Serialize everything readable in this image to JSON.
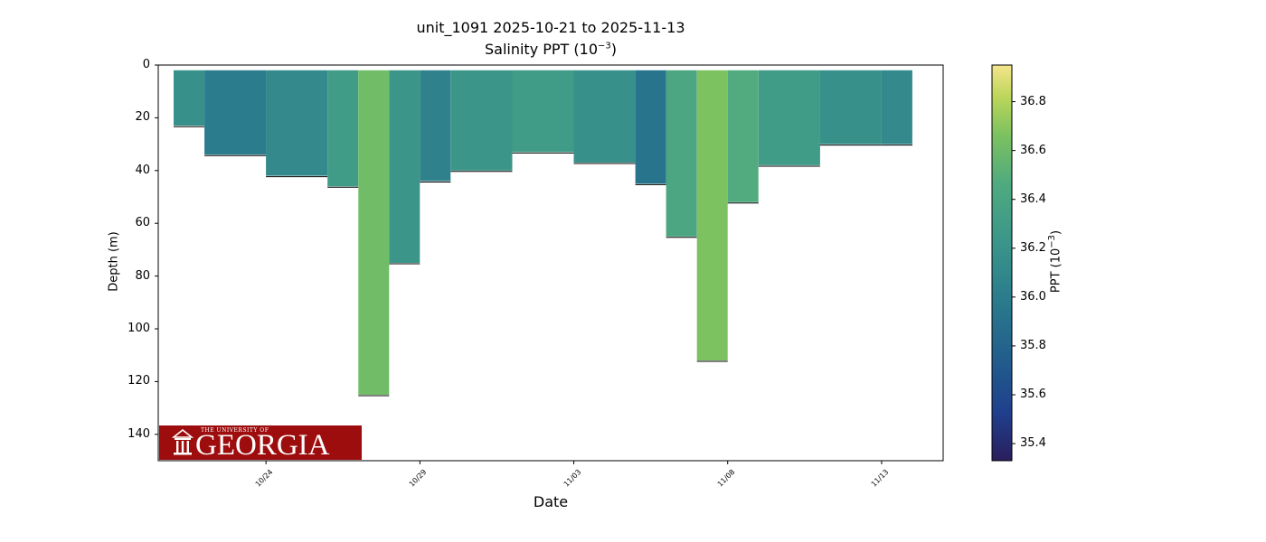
{
  "chart_data": {
    "type": "scatter",
    "title": "unit_1091 2025-10-21 to 2025-11-13",
    "subtitle_prefix": "Salinity PPT (10",
    "subtitle_exp": "−3",
    "subtitle_suffix": ")",
    "xlabel": "Date",
    "ylabel": "Depth (m)",
    "colorbar_label_prefix": "PPT (10",
    "colorbar_label_exp": "−3",
    "colorbar_label_suffix": ")",
    "x_axis": "date",
    "xlim": [
      "2025-10-20T12:00",
      "2025-11-15T00:00"
    ],
    "xticks": [
      "10/24",
      "10/29",
      "11/03",
      "11/08",
      "11/13"
    ],
    "xtick_dates": [
      "2025-10-24",
      "2025-10-29",
      "2025-11-03",
      "2025-11-08",
      "2025-11-13"
    ],
    "ylim": [
      150,
      0
    ],
    "yticks": [
      "0",
      "20",
      "40",
      "60",
      "80",
      "100",
      "120",
      "140"
    ],
    "colorbar_range": [
      35.33,
      36.95
    ],
    "colorbar_ticks": [
      "35.4",
      "35.6",
      "35.8",
      "36.0",
      "36.2",
      "36.4",
      "36.6",
      "36.8"
    ],
    "colormap": [
      "#2a1e5c",
      "#1f3f8c",
      "#215c8c",
      "#2a7a8c",
      "#3a958a",
      "#4faa7f",
      "#7ac160",
      "#bcd65a",
      "#f5e58c"
    ],
    "grid": false,
    "legend": "none",
    "profiles": [
      {
        "start": "2025-10-21",
        "end": "2025-10-22",
        "max_depth": 23,
        "salinity": 36.1
      },
      {
        "start": "2025-10-22",
        "end": "2025-10-24",
        "max_depth": 34,
        "salinity": 35.95
      },
      {
        "start": "2025-10-24",
        "end": "2025-10-26",
        "max_depth": 42,
        "salinity": 36.05
      },
      {
        "start": "2025-10-26",
        "end": "2025-10-27",
        "max_depth": 46,
        "salinity": 36.2
      },
      {
        "start": "2025-10-27",
        "end": "2025-10-28",
        "max_depth": 125,
        "salinity": 36.5
      },
      {
        "start": "2025-10-28",
        "end": "2025-10-29",
        "max_depth": 75,
        "salinity": 36.15
      },
      {
        "start": "2025-10-29",
        "end": "2025-10-30",
        "max_depth": 44,
        "salinity": 36.0
      },
      {
        "start": "2025-10-30",
        "end": "2025-11-01",
        "max_depth": 40,
        "salinity": 36.15
      },
      {
        "start": "2025-11-01",
        "end": "2025-11-03",
        "max_depth": 33,
        "salinity": 36.2
      },
      {
        "start": "2025-11-03",
        "end": "2025-11-05",
        "max_depth": 37,
        "salinity": 36.1
      },
      {
        "start": "2025-11-05",
        "end": "2025-11-06",
        "max_depth": 45,
        "salinity": 35.9
      },
      {
        "start": "2025-11-06",
        "end": "2025-11-07",
        "max_depth": 65,
        "salinity": 36.3
      },
      {
        "start": "2025-11-07",
        "end": "2025-11-08",
        "max_depth": 112,
        "salinity": 36.55
      },
      {
        "start": "2025-11-08",
        "end": "2025-11-09",
        "max_depth": 52,
        "salinity": 36.35
      },
      {
        "start": "2025-11-09",
        "end": "2025-11-11",
        "max_depth": 38,
        "salinity": 36.2
      },
      {
        "start": "2025-11-11",
        "end": "2025-11-13",
        "max_depth": 30,
        "salinity": 36.1
      },
      {
        "start": "2025-11-13",
        "end": "2025-11-14",
        "max_depth": 30,
        "salinity": 36.05
      }
    ]
  },
  "logo": {
    "top_text": "THE UNIVERSITY OF",
    "main_text": "GEORGIA",
    "color": "#9e0d0e"
  }
}
